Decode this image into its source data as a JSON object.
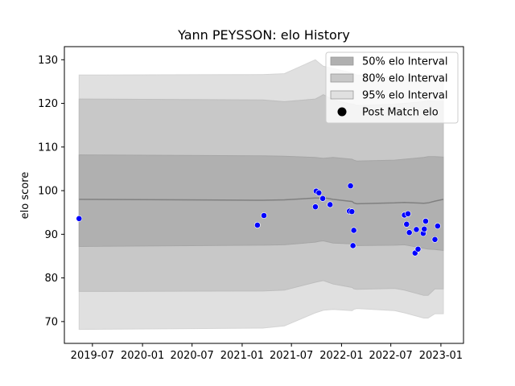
{
  "chart_data": {
    "type": "scatter",
    "title": "Yann PEYSSON: elo History",
    "xlabel": "",
    "ylabel": "elo score",
    "ylim": [
      65,
      133
    ],
    "xlim": [
      "2019-03-20",
      "2023-03-25"
    ],
    "x_ticks": [
      "2019-07",
      "2020-01",
      "2020-07",
      "2021-01",
      "2021-07",
      "2022-01",
      "2022-07",
      "2023-01"
    ],
    "y_ticks": [
      70,
      80,
      90,
      100,
      110,
      120,
      130
    ],
    "legend_position": "top-right",
    "legend": [
      {
        "label": "50% elo Interval",
        "kind": "band",
        "color": "#b0b0b0"
      },
      {
        "label": "80% elo Interval",
        "kind": "band",
        "color": "#c8c8c8"
      },
      {
        "label": "95% elo Interval",
        "kind": "band",
        "color": "#e0e0e0"
      },
      {
        "label": "Post Match elo",
        "kind": "marker",
        "color": "#000000"
      }
    ],
    "colors": {
      "points": "#0000ff",
      "mean_line": "#808080",
      "band_50": "#b0b0b0",
      "band_80": "#c8c8c8",
      "band_95": "#e0e0e0"
    },
    "bands": [
      {
        "date": "2019-05-13",
        "mean": 98.0,
        "q50": [
          87.2,
          108.2
        ],
        "q80": [
          76.9,
          121.0
        ],
        "q95": [
          68.2,
          126.5
        ]
      },
      {
        "date": "2021-02-26",
        "mean": 97.8,
        "q50": [
          87.5,
          108.0
        ],
        "q80": [
          77.0,
          120.8
        ],
        "q95": [
          68.5,
          126.6
        ]
      },
      {
        "date": "2021-03-17",
        "mean": 97.8,
        "q50": [
          87.5,
          108.0
        ],
        "q80": [
          77.0,
          120.8
        ],
        "q95": [
          68.5,
          126.6
        ]
      },
      {
        "date": "2021-06-05",
        "mean": 97.9,
        "q50": [
          87.6,
          107.9
        ],
        "q80": [
          77.2,
          120.4
        ],
        "q95": [
          69.0,
          126.8
        ]
      },
      {
        "date": "2021-09-27",
        "mean": 98.3,
        "q50": [
          88.2,
          107.6
        ],
        "q80": [
          79.0,
          121.0
        ],
        "q95": [
          72.0,
          130.0
        ]
      },
      {
        "date": "2021-10-12",
        "mean": 98.3,
        "q50": [
          88.4,
          107.5
        ],
        "q80": [
          79.2,
          121.5
        ],
        "q95": [
          72.3,
          129.2
        ]
      },
      {
        "date": "2021-10-26",
        "mean": 98.4,
        "q50": [
          88.5,
          107.4
        ],
        "q80": [
          79.4,
          122.0
        ],
        "q95": [
          72.6,
          128.5
        ]
      },
      {
        "date": "2021-12-01",
        "mean": 98.0,
        "q50": [
          88.0,
          107.6
        ],
        "q80": [
          78.6,
          120.8
        ],
        "q95": [
          72.8,
          128.0
        ]
      },
      {
        "date": "2022-02-09",
        "mean": 97.5,
        "q50": [
          87.8,
          107.2
        ],
        "q80": [
          77.8,
          119.8
        ],
        "q95": [
          72.5,
          127.0
        ]
      },
      {
        "date": "2022-02-15",
        "mean": 97.2,
        "q50": [
          87.5,
          107.0
        ],
        "q80": [
          77.5,
          119.8
        ],
        "q95": [
          72.8,
          126.8
        ]
      },
      {
        "date": "2022-02-26",
        "mean": 97.0,
        "q50": [
          87.4,
          106.8
        ],
        "q80": [
          77.4,
          119.5
        ],
        "q95": [
          73.0,
          126.5
        ]
      },
      {
        "date": "2022-07-15",
        "mean": 97.2,
        "q50": [
          87.5,
          107.0
        ],
        "q80": [
          77.6,
          119.8
        ],
        "q95": [
          72.5,
          126.0
        ]
      },
      {
        "date": "2022-08-20",
        "mean": 97.3,
        "q50": [
          87.6,
          107.2
        ],
        "q80": [
          77.2,
          120.0
        ],
        "q95": [
          72.0,
          126.2
        ]
      },
      {
        "date": "2022-10-30",
        "mean": 97.1,
        "q50": [
          86.8,
          107.6
        ],
        "q80": [
          76.0,
          120.4
        ],
        "q95": [
          70.8,
          126.5
        ]
      },
      {
        "date": "2022-11-15",
        "mean": 97.2,
        "q50": [
          86.6,
          107.8
        ],
        "q80": [
          76.0,
          120.6
        ],
        "q95": [
          70.8,
          126.6
        ]
      },
      {
        "date": "2022-12-10",
        "mean": 97.6,
        "q50": [
          86.5,
          107.8
        ],
        "q80": [
          77.5,
          120.5
        ],
        "q95": [
          71.8,
          126.6
        ]
      },
      {
        "date": "2023-01-10",
        "mean": 98.0,
        "q50": [
          86.3,
          107.7
        ],
        "q80": [
          77.5,
          120.5
        ],
        "q95": [
          71.8,
          126.5
        ]
      }
    ],
    "points": [
      {
        "date": "2019-05-13",
        "elo": 93.6
      },
      {
        "date": "2021-02-26",
        "elo": 92.1
      },
      {
        "date": "2021-03-22",
        "elo": 94.3
      },
      {
        "date": "2021-09-27",
        "elo": 96.3
      },
      {
        "date": "2021-09-30",
        "elo": 99.9
      },
      {
        "date": "2021-10-10",
        "elo": 99.5
      },
      {
        "date": "2021-10-24",
        "elo": 98.2
      },
      {
        "date": "2021-11-20",
        "elo": 96.8
      },
      {
        "date": "2022-01-30",
        "elo": 95.3
      },
      {
        "date": "2022-02-03",
        "elo": 101.1
      },
      {
        "date": "2022-02-08",
        "elo": 95.2
      },
      {
        "date": "2022-02-12",
        "elo": 87.4
      },
      {
        "date": "2022-02-15",
        "elo": 90.9
      },
      {
        "date": "2022-08-20",
        "elo": 94.4
      },
      {
        "date": "2022-08-28",
        "elo": 92.3
      },
      {
        "date": "2022-09-02",
        "elo": 94.7
      },
      {
        "date": "2022-09-07",
        "elo": 90.4
      },
      {
        "date": "2022-09-28",
        "elo": 85.7
      },
      {
        "date": "2022-10-03",
        "elo": 91.1
      },
      {
        "date": "2022-10-09",
        "elo": 86.6
      },
      {
        "date": "2022-10-28",
        "elo": 90.2
      },
      {
        "date": "2022-11-01",
        "elo": 91.2
      },
      {
        "date": "2022-11-06",
        "elo": 93.0
      },
      {
        "date": "2022-12-10",
        "elo": 88.8
      },
      {
        "date": "2022-12-20",
        "elo": 91.9
      }
    ]
  }
}
